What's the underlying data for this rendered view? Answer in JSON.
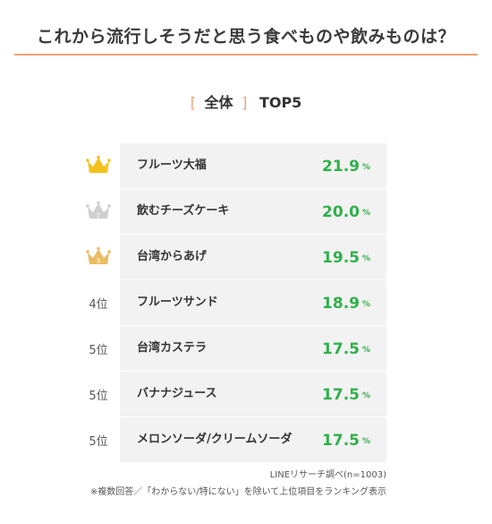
{
  "title": "これから流行しそうだと思う食べものや飲みものは？",
  "subtitle": {
    "open_bracket": "[",
    "group": "全体",
    "close_bracket": "]",
    "label": "TOP5"
  },
  "colors": {
    "accent": "#f2a272",
    "value_green": "#2fb04a",
    "gold": "#f4c21b",
    "silver": "#cfcfcf",
    "bronze": "#e9bd63",
    "row_bg": "#f2f2f2"
  },
  "chart_data": {
    "type": "table",
    "percent_unit": "%",
    "rows": [
      {
        "rank_label": "",
        "rank": 1,
        "icon": "gold-crown-icon",
        "item": "フルーツ大福",
        "value": "21.9"
      },
      {
        "rank_label": "",
        "rank": 2,
        "icon": "silver-crown-icon",
        "item": "飲むチーズケーキ",
        "value": "20.0"
      },
      {
        "rank_label": "",
        "rank": 3,
        "icon": "bronze-crown-icon",
        "item": "台湾からあげ",
        "value": "19.5"
      },
      {
        "rank_label": "4位",
        "rank": 4,
        "icon": "",
        "item": "フルーツサンド",
        "value": "18.9"
      },
      {
        "rank_label": "5位",
        "rank": 5,
        "icon": "",
        "item": "台湾カステラ",
        "value": "17.5"
      },
      {
        "rank_label": "5位",
        "rank": 5,
        "icon": "",
        "item": "バナナジュース",
        "value": "17.5"
      },
      {
        "rank_label": "5位",
        "rank": 5,
        "icon": "",
        "item": "メロンソーダ/クリームソーダ",
        "value": "17.5"
      }
    ]
  },
  "source": "LINEリサーチ調べ(n=1003)",
  "note": "※複数回答／「わからない/特にない」を除いて上位項目をランキング表示"
}
